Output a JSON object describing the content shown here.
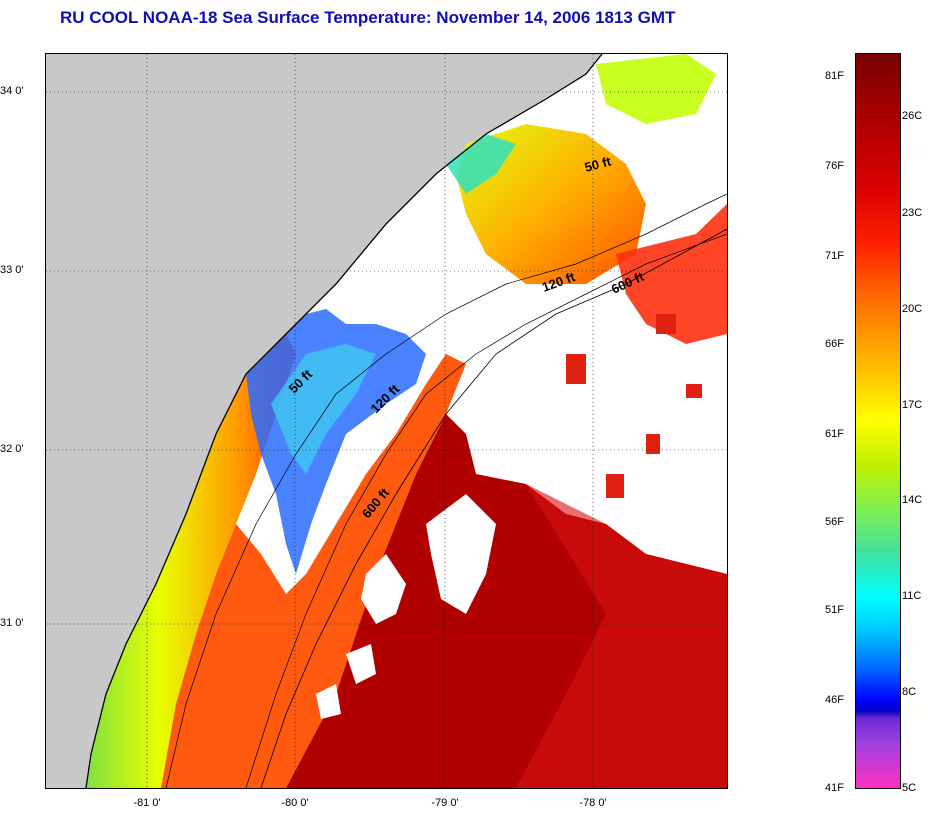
{
  "title": "RU COOL  NOAA-18  Sea Surface Temperature:  November 14, 2006 1813 GMT",
  "map": {
    "lat_labels": [
      "34 0'",
      "33 0'",
      "32 0'",
      "31 0'"
    ],
    "lon_labels": [
      "-81 0'",
      "-80 0'",
      "-79 0'",
      "-78 0'"
    ],
    "depth_labels": [
      "50 ft",
      "120 ft",
      "600 ft",
      "50 ft",
      "120 ft",
      "600 ft"
    ],
    "colors": {
      "land": "#c8c8c8",
      "cloud": "#ffffff",
      "warm": "#b00000"
    }
  },
  "colorbar": {
    "fahrenheit": [
      "81F",
      "76F",
      "71F",
      "66F",
      "61F",
      "56F",
      "51F",
      "46F",
      "41F"
    ],
    "celsius": [
      "26C",
      "23C",
      "20C",
      "17C",
      "14C",
      "11C",
      "8C",
      "5C"
    ]
  }
}
